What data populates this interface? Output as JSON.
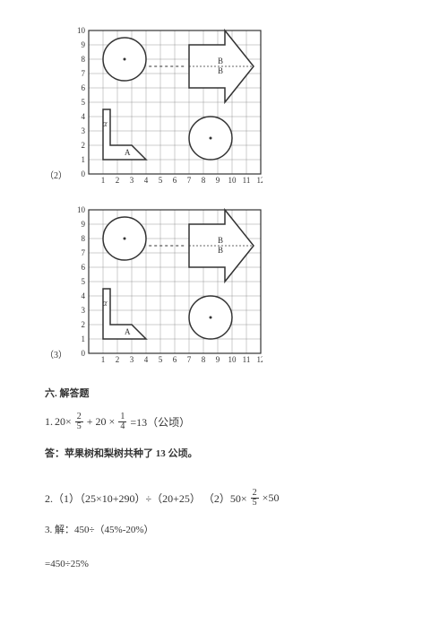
{
  "grids": {
    "cell": 16,
    "cols": 12,
    "rows": 10,
    "stroke": "#333333",
    "gridStroke": "#999999",
    "fill": "#ffffff",
    "labelFont": 9,
    "labelA": "A",
    "labelB1": "B",
    "labelB2": "B",
    "yLabels": [
      "0",
      "1",
      "2",
      "3",
      "4",
      "5",
      "6",
      "7",
      "8",
      "9",
      "10"
    ],
    "xLabels": [
      "1",
      "2",
      "3",
      "4",
      "5",
      "6",
      "7",
      "8",
      "9",
      "10",
      "11",
      "12"
    ]
  },
  "labels": {
    "item2": "（2）",
    "item3": "（3）"
  },
  "section6": {
    "title": "六. 解答题",
    "q1_prefix": "1.",
    "q1_eq1": "20×",
    "q1_frac1": {
      "n": "2",
      "d": "5"
    },
    "q1_eq2": "+ 20 ×",
    "q1_frac2": {
      "n": "1",
      "d": "4"
    },
    "q1_eq3": "=13（公顷）",
    "q1_answer": "答：苹果树和梨树共种了 13 公顷。",
    "q2": "2.（1）（25×10+290）÷（20+25）  （2）50×",
    "q2_frac": {
      "n": "2",
      "d": "5"
    },
    "q2_tail": "   ×50",
    "q3a": "3. 解：450÷（45%-20%）",
    "q3b": "=450÷25%"
  }
}
